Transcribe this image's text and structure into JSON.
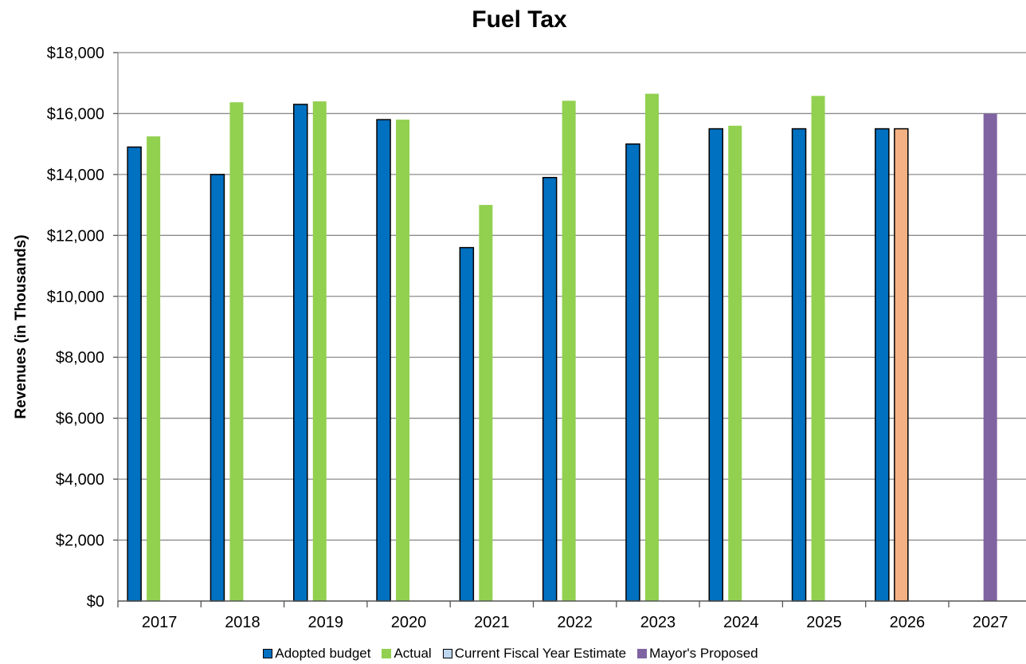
{
  "chart_data": {
    "type": "bar",
    "title": "Fuel Tax",
    "xlabel": "",
    "ylabel": "Revenues (in Thousands)",
    "ylim": [
      0,
      18000
    ],
    "yticks": [
      "$0",
      "$2,000",
      "$4,000",
      "$6,000",
      "$8,000",
      "$10,000",
      "$12,000",
      "$14,000",
      "$16,000",
      "$18,000"
    ],
    "categories": [
      "2017",
      "2018",
      "2019",
      "2020",
      "2021",
      "2022",
      "2023",
      "2024",
      "2025",
      "2026",
      "2027"
    ],
    "grid": true,
    "legend_position": "bottom",
    "series": [
      {
        "name": "Adopted budget",
        "color": "#0070C0",
        "values": [
          14900,
          14000,
          16300,
          15800,
          11600,
          13900,
          15000,
          15500,
          15500,
          15500,
          null
        ]
      },
      {
        "name": "Actual",
        "color": "#92D050",
        "values": [
          15250,
          16370,
          16400,
          15800,
          13000,
          16420,
          16650,
          15600,
          16580,
          null,
          null
        ]
      },
      {
        "name": "Current Fiscal Year Estimate",
        "color": "#F4B183",
        "legend_color": "#BDD7EE",
        "values": [
          null,
          null,
          null,
          null,
          null,
          null,
          null,
          null,
          null,
          15500,
          null
        ]
      },
      {
        "name": "Mayor's Proposed",
        "color": "#8064A2",
        "values": [
          null,
          null,
          null,
          null,
          null,
          null,
          null,
          null,
          null,
          null,
          16000
        ]
      }
    ]
  }
}
